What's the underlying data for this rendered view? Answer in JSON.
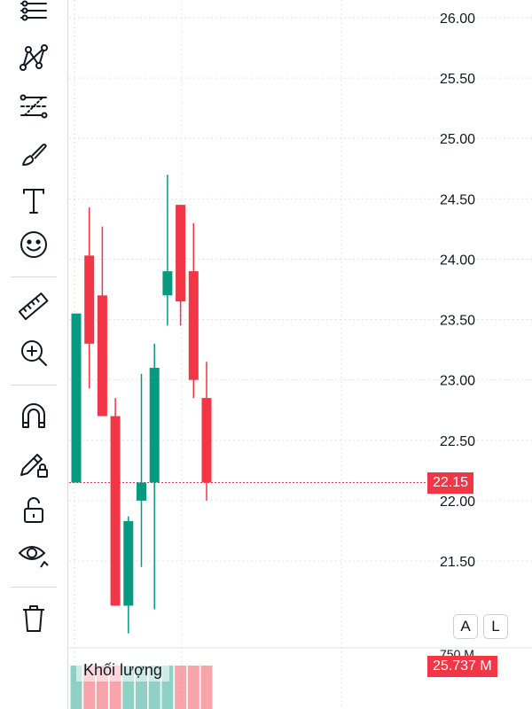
{
  "toolbar": {
    "tools": [
      {
        "name": "horizontal-lines-icon"
      },
      {
        "name": "pattern-icon"
      },
      {
        "name": "fib-retracement-icon"
      },
      {
        "name": "brush-icon"
      },
      {
        "name": "text-icon"
      },
      {
        "name": "emoji-icon"
      },
      {
        "name": "ruler-icon"
      },
      {
        "name": "zoom-in-icon"
      },
      {
        "name": "magnet-icon"
      },
      {
        "name": "lock-drawing-icon"
      },
      {
        "name": "unlock-icon"
      },
      {
        "name": "eye-icon"
      },
      {
        "name": "trash-icon"
      }
    ]
  },
  "chart_data": {
    "type": "candlestick",
    "y_ticks": [
      "26.00",
      "25.50",
      "25.00",
      "24.50",
      "24.00",
      "23.50",
      "23.00",
      "22.50",
      "22.00",
      "21.50"
    ],
    "ylim": [
      21.13,
      26.13
    ],
    "last_price": 22.15,
    "last_price_label": "22.15",
    "volume_label": "Khối lượng",
    "volume_axis_tick": "750 M",
    "volume_last_label": "25.737 M",
    "scale_buttons": [
      "A",
      "L"
    ],
    "up_color": "#089981",
    "down_color": "#f23645",
    "candles": [
      {
        "open": 22.15,
        "high": 23.55,
        "low": 22.15,
        "close": 23.55
      },
      {
        "open": 24.03,
        "high": 24.43,
        "low": 22.93,
        "close": 23.3
      },
      {
        "open": 23.7,
        "high": 24.27,
        "low": 22.7,
        "close": 22.7
      },
      {
        "open": 22.7,
        "high": 22.85,
        "low": 21.13,
        "close": 21.13
      },
      {
        "open": 21.13,
        "high": 21.87,
        "low": 20.9,
        "close": 21.83
      },
      {
        "open": 22.0,
        "high": 23.05,
        "low": 21.45,
        "close": 22.15
      },
      {
        "open": 22.15,
        "high": 23.3,
        "low": 21.1,
        "close": 23.1
      },
      {
        "open": 23.7,
        "high": 24.7,
        "low": 23.45,
        "close": 23.9
      },
      {
        "open": 24.45,
        "high": 24.45,
        "low": 23.45,
        "close": 23.65
      },
      {
        "open": 23.9,
        "high": 24.3,
        "low": 22.85,
        "close": 23.0
      },
      {
        "open": 22.85,
        "high": 23.15,
        "low": 22.0,
        "close": 22.15
      }
    ],
    "volume_colors": [
      "up",
      "down",
      "down",
      "down",
      "up",
      "up",
      "up",
      "up",
      "down",
      "down",
      "down"
    ]
  }
}
